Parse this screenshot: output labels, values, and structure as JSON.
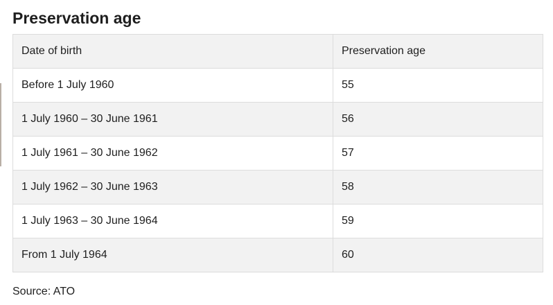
{
  "section": {
    "title": "Preservation age"
  },
  "table": {
    "headers": {
      "date_of_birth": "Date of birth",
      "preservation_age": "Preservation age"
    },
    "rows": [
      {
        "date_of_birth": "Before 1 July 1960",
        "preservation_age": "55"
      },
      {
        "date_of_birth": "1 July 1960 – 30 June 1961",
        "preservation_age": "56"
      },
      {
        "date_of_birth": "1 July 1961 – 30 June 1962",
        "preservation_age": "57"
      },
      {
        "date_of_birth": "1 July 1962 – 30 June 1963",
        "preservation_age": "58"
      },
      {
        "date_of_birth": "1 July 1963 – 30 June 1964",
        "preservation_age": "59"
      },
      {
        "date_of_birth": "From 1 July 1964",
        "preservation_age": "60"
      }
    ]
  },
  "footer": {
    "source": "Source: ATO"
  }
}
